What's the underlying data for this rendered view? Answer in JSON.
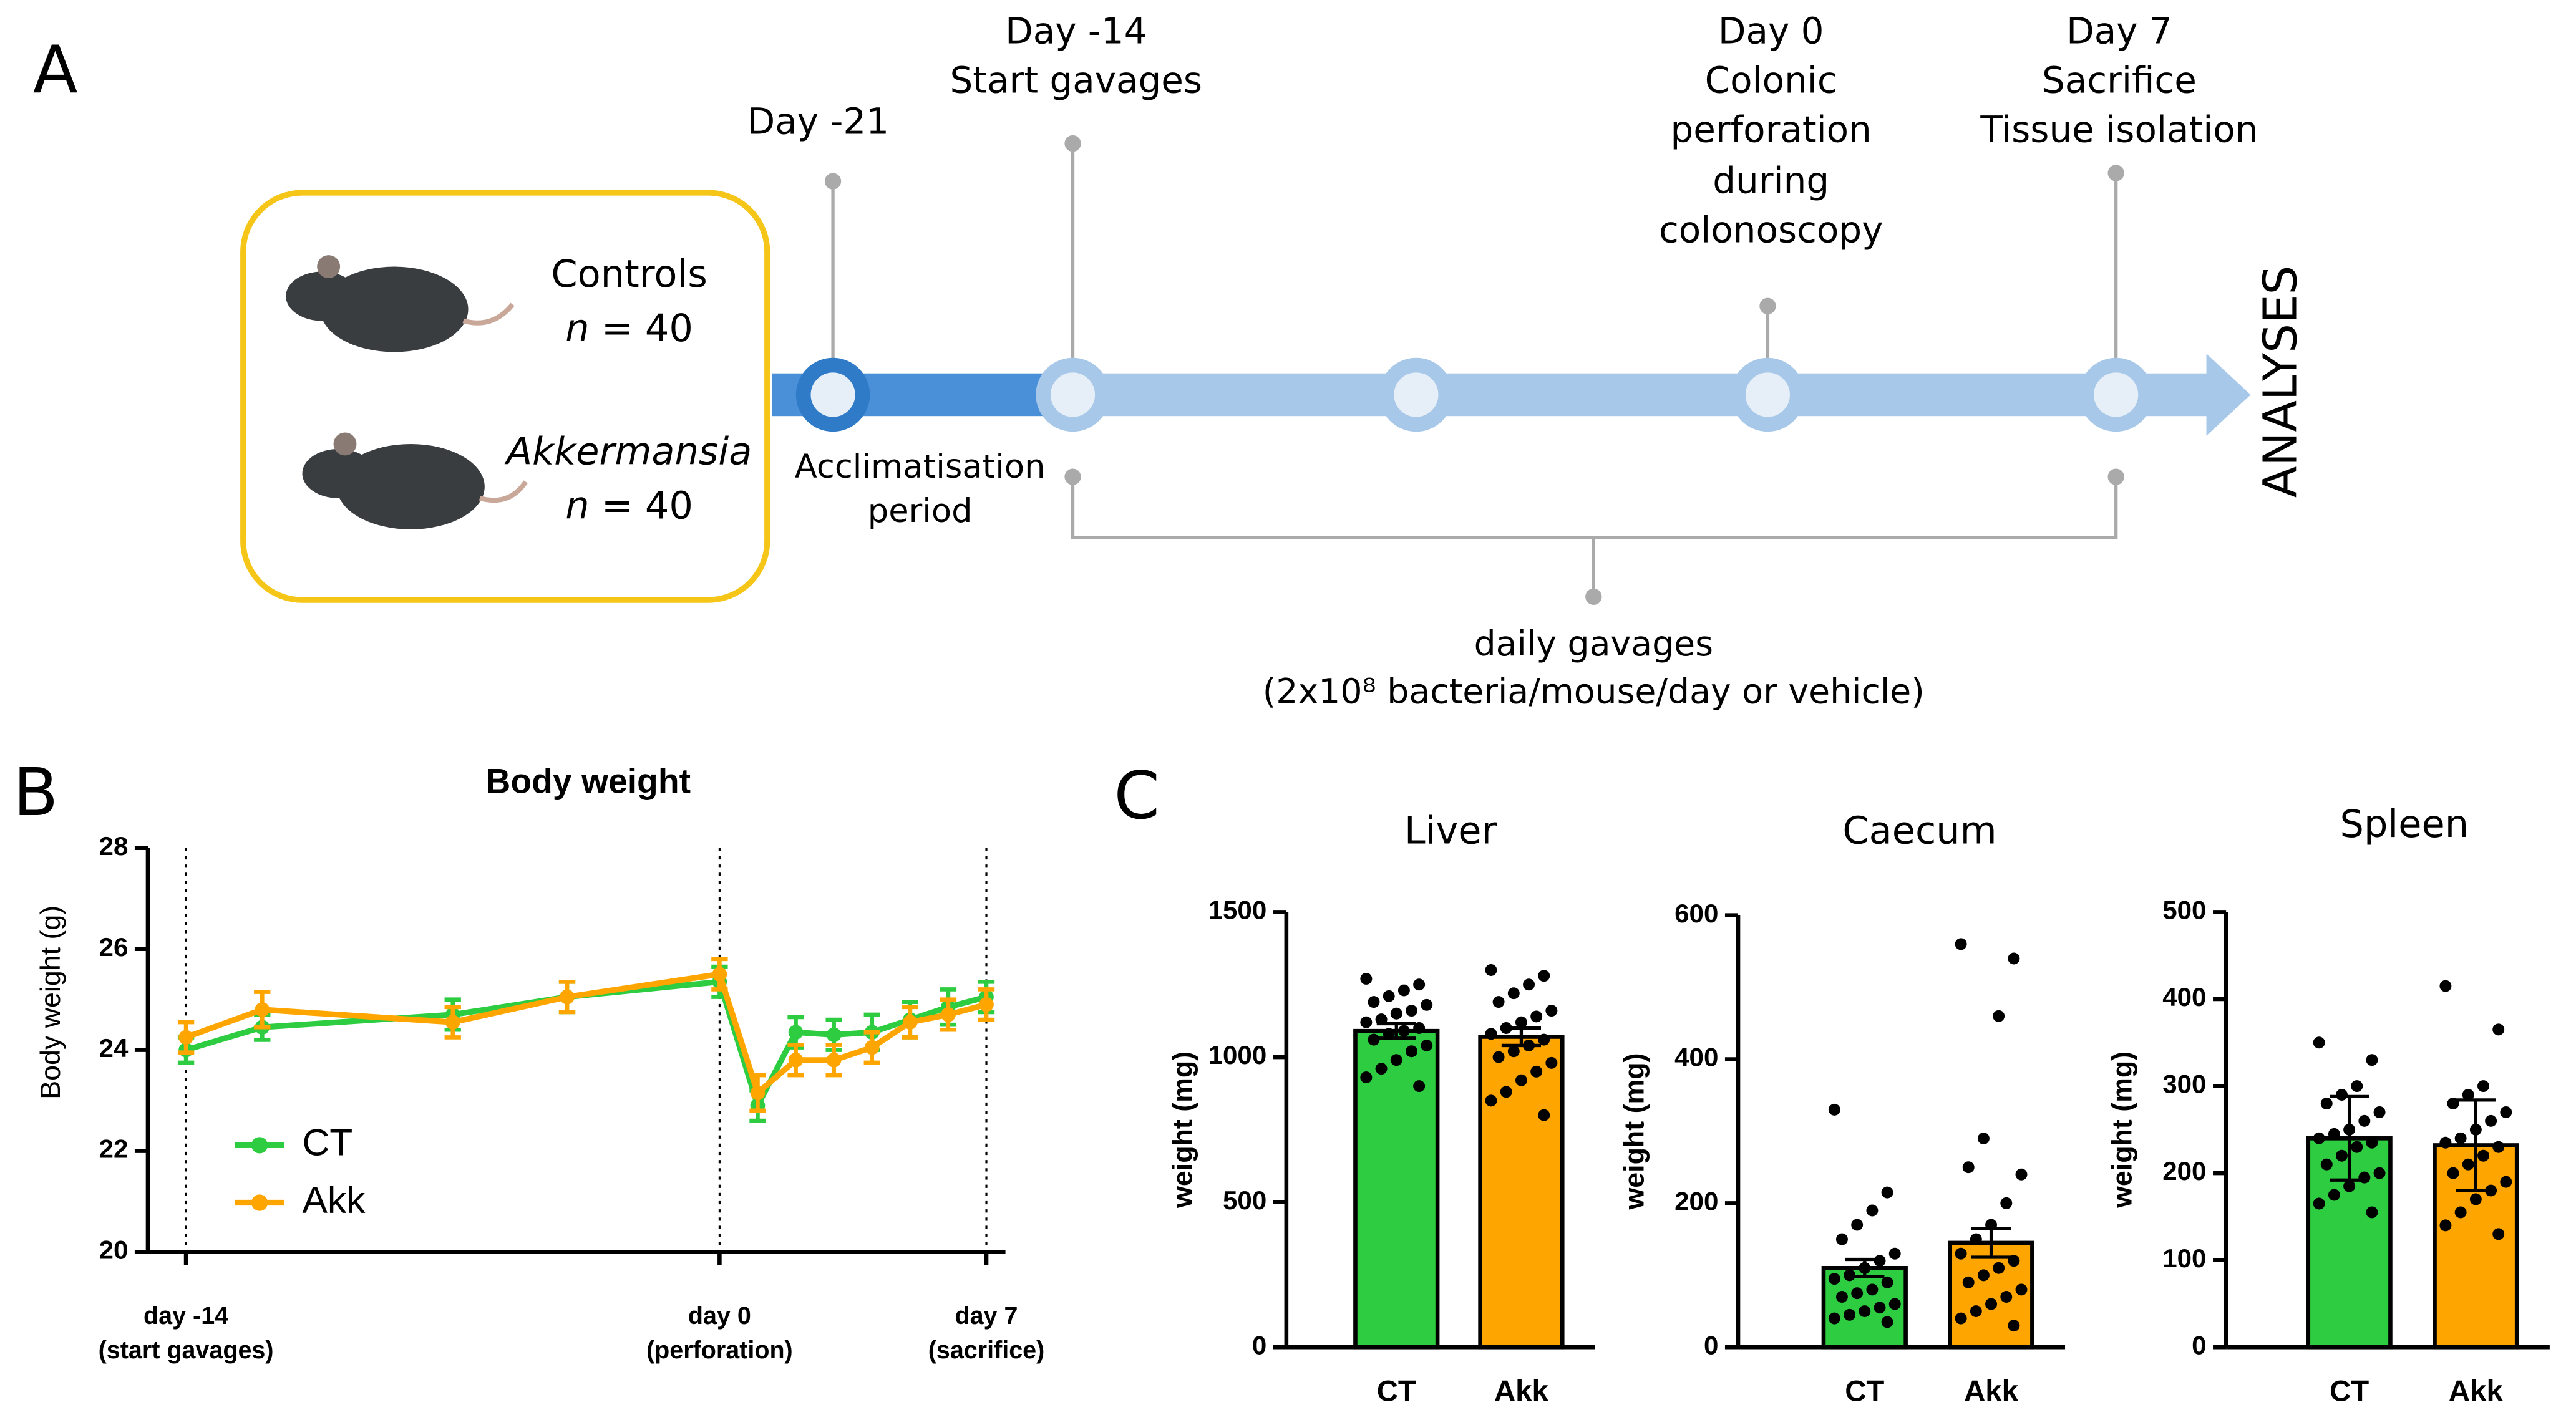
{
  "panel_labels": [
    "A",
    "B",
    "C"
  ],
  "timeline": {
    "groups": [
      {
        "name": "Controls",
        "n_symbol": "n",
        "count": "= 40",
        "color": "#4e8a2e"
      },
      {
        "name": "Akkermansia",
        "n_symbol": "n",
        "count": "= 40",
        "color": "#f5a623"
      }
    ],
    "events": [
      [
        "Day -21"
      ],
      [
        "Day -14",
        "Start gavages"
      ],
      [
        "Day 0",
        "Colonic",
        "perforation",
        "during",
        "colonoscopy"
      ],
      [
        "Day 7",
        "Sacrifice",
        "Tissue isolation"
      ]
    ],
    "period": [
      "Acclimatisation",
      "period"
    ],
    "treatment": [
      "daily gavages",
      "(2x10⁸ bacteria/mouse/day or vehicle)"
    ],
    "end": "ANALYSES"
  },
  "chart_data": [
    {
      "type": "line",
      "title": "Body weight",
      "ylabel": "Body weight (g)",
      "x": [
        -14,
        -12,
        -7,
        -4,
        0,
        1,
        2,
        3,
        4,
        5,
        6,
        7
      ],
      "series": [
        {
          "name": "CT",
          "color": "#2ecc40",
          "values": [
            24.0,
            24.45,
            24.7,
            25.05,
            25.35,
            22.9,
            24.35,
            24.3,
            24.35,
            24.6,
            24.85,
            25.05
          ],
          "errors": [
            0.25,
            0.25,
            0.3,
            0.3,
            0.3,
            0.3,
            0.3,
            0.3,
            0.35,
            0.35,
            0.35,
            0.3
          ]
        },
        {
          "name": "Akk",
          "color": "#ffa500",
          "values": [
            24.25,
            24.8,
            24.55,
            25.05,
            25.5,
            23.15,
            23.8,
            23.8,
            24.05,
            24.55,
            24.7,
            24.9
          ],
          "errors": [
            0.3,
            0.35,
            0.3,
            0.3,
            0.3,
            0.35,
            0.3,
            0.3,
            0.3,
            0.3,
            0.3,
            0.3
          ]
        }
      ],
      "xlim": [
        -15,
        7.5
      ],
      "ylim": [
        20,
        28
      ],
      "yticks": [
        20,
        22,
        24,
        26,
        28
      ],
      "xticks": [
        {
          "value": -14,
          "label": "day -14\n(start gavages)"
        },
        {
          "value": 0,
          "label": "day 0\n(perforation)"
        },
        {
          "value": 7,
          "label": "day 7\n(sacrifice)"
        }
      ],
      "tick_lines": "dotted",
      "legend": "lower left"
    },
    {
      "type": "bar",
      "title": "Liver",
      "ylabel": "weight (mg)",
      "categories": [
        "CT",
        "Akk"
      ],
      "colors": [
        "#2ecc40",
        "#ffa500"
      ],
      "values": [
        1090,
        1070
      ],
      "errors": [
        25,
        30
      ],
      "points": [
        [
          1270,
          1250,
          1230,
          1210,
          1190,
          1180,
          1160,
          1150,
          1130,
          1120,
          1100,
          1090,
          1080,
          1060,
          1040,
          1020,
          990,
          960,
          930,
          900
        ],
        [
          1300,
          1280,
          1250,
          1220,
          1190,
          1160,
          1140,
          1120,
          1100,
          1080,
          1060,
          1040,
          1020,
          1000,
          980,
          950,
          920,
          880,
          850,
          800
        ]
      ],
      "ylim": [
        0,
        1500
      ],
      "yticks": [
        0,
        500,
        1000,
        1500
      ]
    },
    {
      "type": "bar",
      "title": "Caecum",
      "ylabel": "weight (mg)",
      "categories": [
        "CT",
        "Akk"
      ],
      "colors": [
        "#2ecc40",
        "#ffa500"
      ],
      "values": [
        110,
        145
      ],
      "errors": [
        12,
        20
      ],
      "points": [
        [
          330,
          215,
          190,
          170,
          150,
          130,
          120,
          110,
          100,
          95,
          90,
          80,
          75,
          70,
          60,
          55,
          50,
          45,
          40,
          35
        ],
        [
          560,
          540,
          460,
          290,
          250,
          240,
          200,
          170,
          150,
          130,
          120,
          110,
          100,
          90,
          80,
          70,
          60,
          50,
          40,
          30
        ]
      ],
      "ylim": [
        0,
        600
      ],
      "yticks": [
        0,
        200,
        400,
        600
      ]
    },
    {
      "type": "bar",
      "title": "Spleen",
      "ylabel": "weight (mg)",
      "categories": [
        "CT",
        "Akk"
      ],
      "colors": [
        "#2ecc40",
        "#ffa500"
      ],
      "values": [
        240,
        232
      ],
      "errors": [
        48,
        52
      ],
      "points": [
        [
          350,
          330,
          300,
          290,
          280,
          270,
          260,
          250,
          245,
          240,
          235,
          230,
          220,
          210,
          200,
          195,
          185,
          175,
          165,
          155
        ],
        [
          415,
          365,
          300,
          290,
          280,
          270,
          260,
          250,
          240,
          235,
          230,
          220,
          210,
          200,
          190,
          180,
          170,
          155,
          140,
          130
        ]
      ],
      "ylim": [
        0,
        500
      ],
      "yticks": [
        0,
        100,
        200,
        300,
        400,
        500
      ]
    }
  ]
}
